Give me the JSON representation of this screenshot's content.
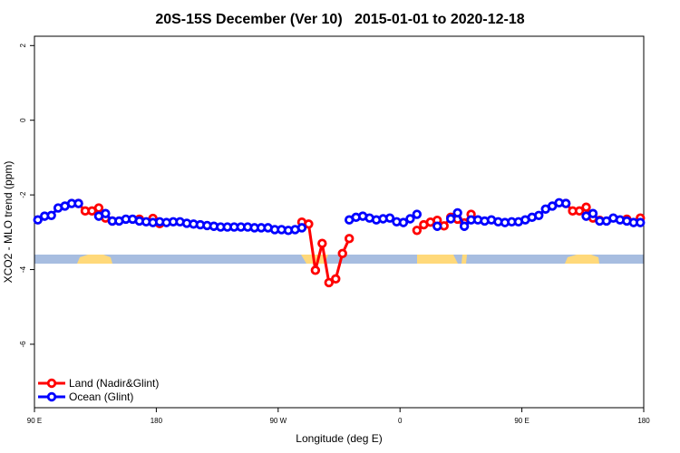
{
  "chart_data": {
    "type": "line",
    "title": "20S-15S December (Ver 10)   2015-01-01 to 2020-12-18",
    "xlabel": "Longitude (deg E)",
    "ylabel": "XCO2 - MLO trend (ppm)",
    "x": [
      92.5,
      97.5,
      102.5,
      107.5,
      112.5,
      117.5,
      122.5,
      127.5,
      132.5,
      137.5,
      142.5,
      147.5,
      152.5,
      157.5,
      162.5,
      167.5,
      172.5,
      177.5,
      182.5,
      187.5,
      192.5,
      197.5,
      202.5,
      207.5,
      212.5,
      217.5,
      222.5,
      227.5,
      232.5,
      237.5,
      242.5,
      247.5,
      252.5,
      257.5,
      262.5,
      267.5,
      272.5,
      277.5,
      282.5,
      287.5,
      292.5,
      297.5,
      302.5,
      307.5,
      312.5,
      317.5,
      322.5,
      327.5,
      332.5,
      337.5,
      342.5,
      347.5,
      352.5,
      357.5,
      362.5,
      367.5,
      372.5,
      377.5,
      382.5,
      387.5,
      392.5,
      397.5,
      402.5,
      407.5,
      412.5,
      417.5,
      422.5,
      427.5,
      432.5,
      437.5,
      442.5,
      447.5,
      452.5,
      457.5,
      462.5,
      467.5,
      472.5,
      477.5,
      482.5,
      487.5,
      492.5,
      497.5,
      502.5,
      507.5,
      512.5,
      517.5,
      522.5,
      527.5,
      532.5,
      537.5
    ],
    "series": [
      {
        "name": "Land (Nadir&Glint)",
        "color": "#ff0000",
        "values": [
          null,
          null,
          null,
          null,
          null,
          null,
          -2.23,
          -2.43,
          -2.43,
          -2.35,
          -2.62,
          -2.7,
          null,
          null,
          null,
          -2.65,
          null,
          -2.63,
          -2.77,
          null,
          null,
          null,
          null,
          null,
          null,
          null,
          null,
          null,
          null,
          null,
          null,
          null,
          null,
          null,
          null,
          null,
          null,
          null,
          null,
          -2.73,
          -2.78,
          -4.02,
          -3.3,
          -4.35,
          -4.25,
          -3.57,
          -3.17,
          null,
          null,
          null,
          null,
          null,
          null,
          null,
          null,
          null,
          -2.95,
          -2.8,
          -2.73,
          -2.68,
          -2.83,
          -2.6,
          -2.65,
          -2.75,
          -2.52,
          null,
          null,
          null,
          null,
          null,
          null,
          null,
          null,
          null,
          null,
          null,
          null,
          null,
          -2.23,
          -2.43,
          -2.43,
          -2.33,
          -2.62,
          -2.68,
          null,
          null,
          null,
          -2.65,
          null,
          -2.62
        ]
      },
      {
        "name": "Ocean (Glint)",
        "color": "#0000ff",
        "values": [
          -2.67,
          -2.57,
          -2.55,
          -2.35,
          -2.3,
          -2.23,
          -2.23,
          null,
          null,
          -2.57,
          -2.5,
          -2.7,
          -2.7,
          -2.65,
          -2.65,
          -2.7,
          -2.72,
          -2.74,
          -2.72,
          -2.74,
          -2.72,
          -2.72,
          -2.76,
          -2.78,
          -2.8,
          -2.82,
          -2.84,
          -2.86,
          -2.86,
          -2.86,
          -2.86,
          -2.86,
          -2.88,
          -2.88,
          -2.88,
          -2.93,
          -2.93,
          -2.95,
          -2.93,
          -2.88,
          null,
          null,
          null,
          null,
          null,
          null,
          -2.67,
          -2.6,
          -2.57,
          -2.62,
          -2.67,
          -2.64,
          -2.62,
          -2.72,
          -2.74,
          -2.64,
          -2.52,
          null,
          null,
          -2.84,
          null,
          -2.64,
          -2.48,
          -2.84,
          -2.67,
          -2.67,
          -2.7,
          -2.67,
          -2.72,
          -2.74,
          -2.72,
          -2.72,
          -2.67,
          -2.6,
          -2.55,
          -2.38,
          -2.3,
          -2.21,
          -2.23,
          null,
          null,
          -2.57,
          -2.5,
          -2.7,
          -2.7,
          -2.62,
          -2.67,
          -2.7,
          -2.74,
          -2.74
        ]
      }
    ],
    "xlim": [
      90,
      540
    ],
    "xticks": [
      {
        "value": 90,
        "label": "90 E"
      },
      180,
      {
        "value": 270,
        "label": "90 W"
      },
      {
        "value": 360,
        "label": "0"
      },
      {
        "value": 450,
        "label": "90 E"
      },
      {
        "value": 540,
        "label": "180"
      }
    ],
    "ylim": [
      -7.7,
      2.25
    ],
    "yticks": [
      -6,
      -4,
      -2,
      0,
      2
    ],
    "legend": "bottom-left"
  }
}
